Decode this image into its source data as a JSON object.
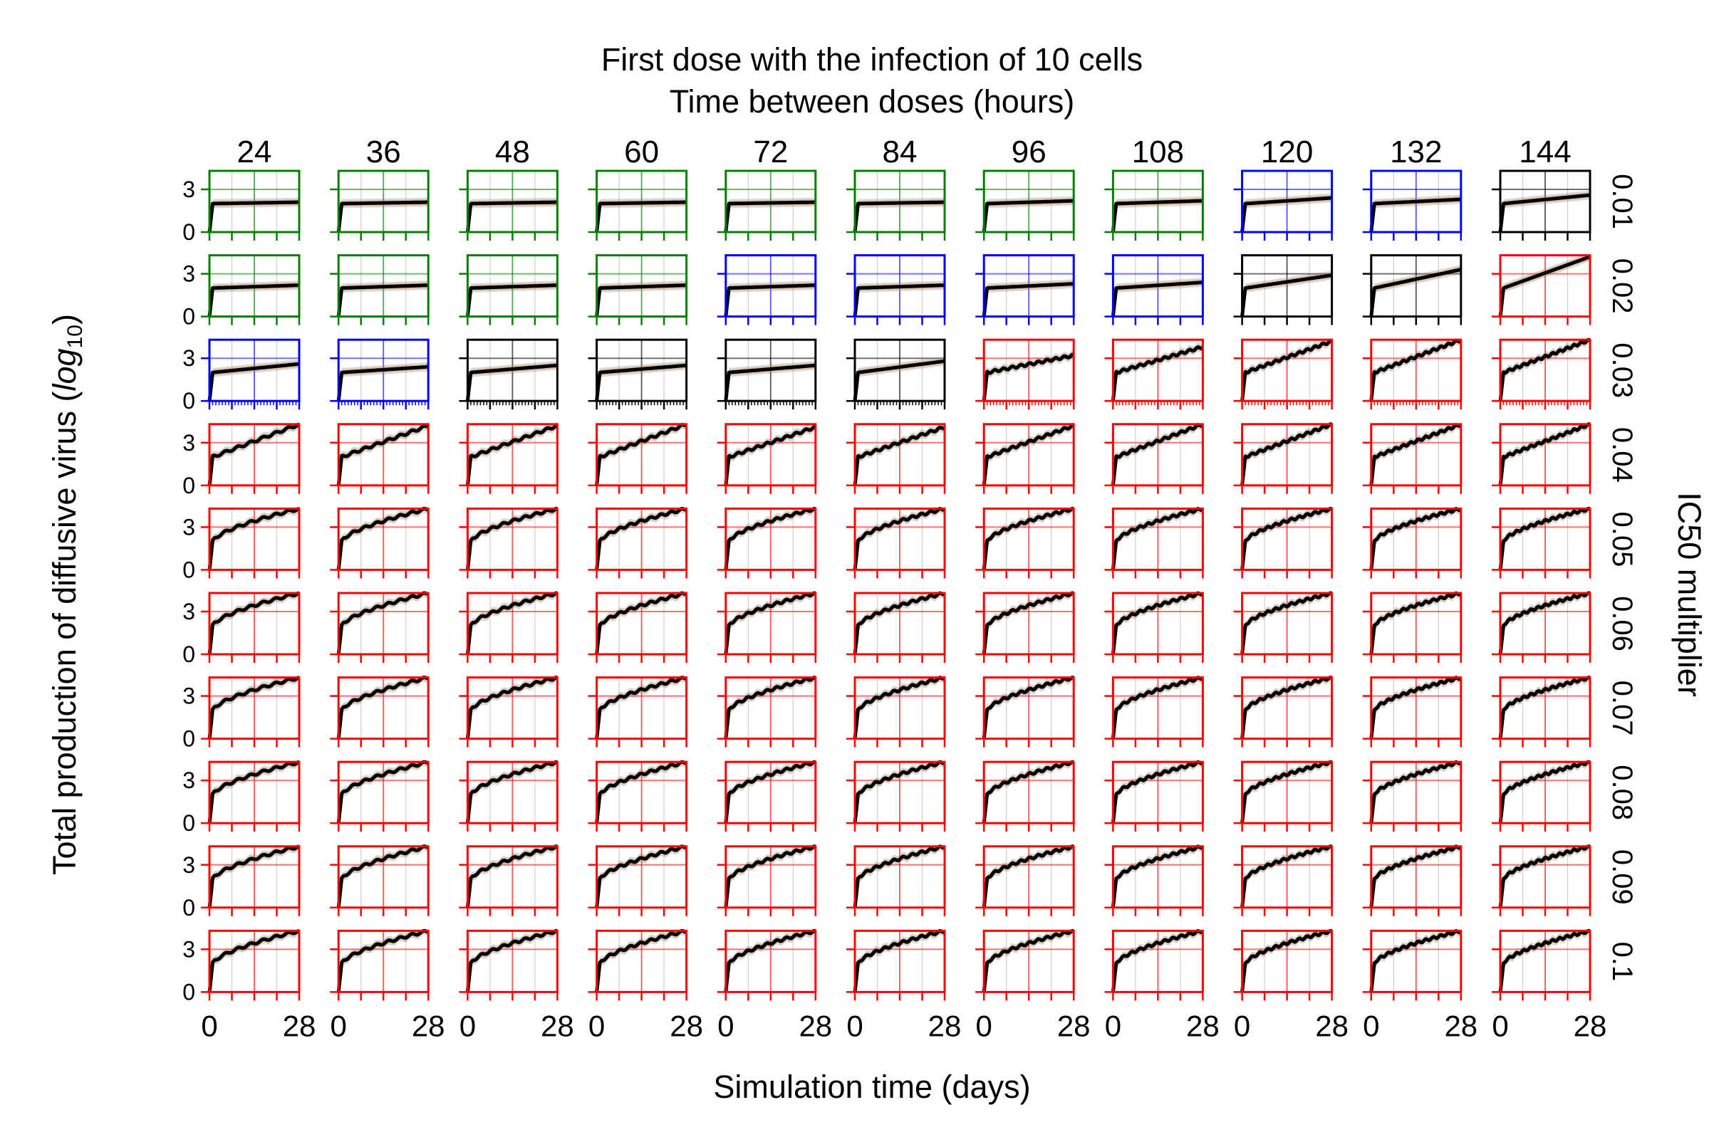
{
  "chart_data": {
    "type": "line",
    "title": "First dose with the infection of 10 cells",
    "subtitle": "Time between doses (hours)",
    "xlabel": "Simulation time (days)",
    "ylabel_main": "Total production of diffusive virus (",
    "ylabel_log": "log",
    "ylabel_sub": "10",
    "ylabel_close": ")",
    "right_label": "IC50 multiplier",
    "column_labels": [
      "24",
      "36",
      "48",
      "60",
      "72",
      "84",
      "96",
      "108",
      "120",
      "132",
      "144"
    ],
    "row_labels": [
      "0.01",
      "0.02",
      "0.03",
      "0.04",
      "0.05",
      "0.06",
      "0.07",
      "0.08",
      "0.09",
      "0.1"
    ],
    "y_ticks": [
      "0",
      "3"
    ],
    "x_ticks": [
      "0",
      "28"
    ],
    "xlim": [
      0,
      28
    ],
    "ylim": [
      0,
      4.3
    ],
    "frame_colors": {
      "g": "#008000",
      "b": "#0000ff",
      "k": "#000000",
      "r": "#ff0000"
    },
    "frame_grid": [
      [
        "g",
        "g",
        "g",
        "g",
        "g",
        "g",
        "g",
        "g",
        "b",
        "b",
        "k"
      ],
      [
        "g",
        "g",
        "g",
        "g",
        "b",
        "b",
        "b",
        "b",
        "k",
        "k",
        "r"
      ],
      [
        "b",
        "b",
        "k",
        "k",
        "k",
        "k",
        "r",
        "r",
        "r",
        "r",
        "r"
      ],
      [
        "r",
        "r",
        "r",
        "r",
        "r",
        "r",
        "r",
        "r",
        "r",
        "r",
        "r"
      ],
      [
        "r",
        "r",
        "r",
        "r",
        "r",
        "r",
        "r",
        "r",
        "r",
        "r",
        "r"
      ],
      [
        "r",
        "r",
        "r",
        "r",
        "r",
        "r",
        "r",
        "r",
        "r",
        "r",
        "r"
      ],
      [
        "r",
        "r",
        "r",
        "r",
        "r",
        "r",
        "r",
        "r",
        "r",
        "r",
        "r"
      ],
      [
        "r",
        "r",
        "r",
        "r",
        "r",
        "r",
        "r",
        "r",
        "r",
        "r",
        "r"
      ],
      [
        "r",
        "r",
        "r",
        "r",
        "r",
        "r",
        "r",
        "r",
        "r",
        "r",
        "r"
      ],
      [
        "r",
        "r",
        "r",
        "r",
        "r",
        "r",
        "r",
        "r",
        "r",
        "r",
        "r"
      ]
    ],
    "final_values": [
      [
        2.1,
        2.1,
        2.1,
        2.1,
        2.1,
        2.1,
        2.2,
        2.2,
        2.4,
        2.3,
        2.6
      ],
      [
        2.2,
        2.2,
        2.2,
        2.2,
        2.2,
        2.2,
        2.3,
        2.4,
        2.9,
        3.3,
        4.2
      ],
      [
        2.6,
        2.4,
        2.5,
        2.5,
        2.5,
        2.8,
        3.2,
        3.8,
        4.2,
        4.3,
        4.3
      ],
      [
        4.3,
        4.2,
        4.2,
        4.3,
        4.1,
        4.1,
        4.2,
        4.3,
        4.3,
        4.3,
        4.3
      ],
      [
        4.3,
        4.3,
        4.3,
        4.3,
        4.3,
        4.3,
        4.3,
        4.3,
        4.3,
        4.3,
        4.3
      ],
      [
        4.3,
        4.3,
        4.3,
        4.3,
        4.3,
        4.3,
        4.3,
        4.3,
        4.3,
        4.3,
        4.3
      ],
      [
        4.3,
        4.3,
        4.3,
        4.3,
        4.3,
        4.3,
        4.3,
        4.3,
        4.3,
        4.3,
        4.3
      ],
      [
        4.3,
        4.3,
        4.3,
        4.3,
        4.3,
        4.3,
        4.3,
        4.3,
        4.3,
        4.3,
        4.3
      ],
      [
        4.3,
        4.3,
        4.3,
        4.3,
        4.3,
        4.3,
        4.3,
        4.3,
        4.3,
        4.3,
        4.3
      ],
      [
        4.3,
        4.3,
        4.3,
        4.3,
        4.3,
        4.3,
        4.3,
        4.3,
        4.3,
        4.3,
        4.3
      ]
    ],
    "band_colors": [
      "#1f77b4",
      "#ff7f0e",
      "#7f7f7f"
    ],
    "line_color": "#000000"
  }
}
